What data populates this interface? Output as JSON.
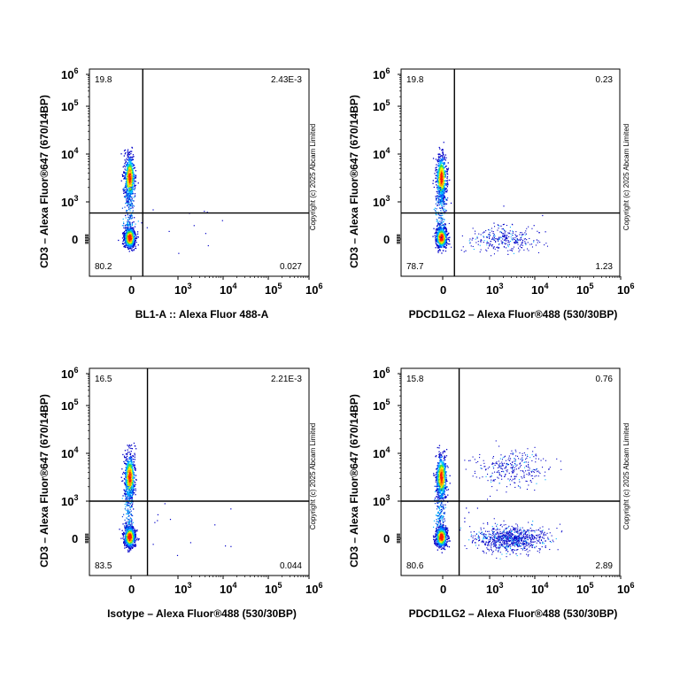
{
  "copyright": "Copyright (c) 2025 Abcam Limited",
  "chart_data": [
    {
      "type": "scatter",
      "subtype": "flow-cytometry-density-dot-plot",
      "xlabel": "BL1-A :: Alexa Fluor    488-A",
      "ylabel": "CD3 – Alexa Fluor®647 (670/14BP)",
      "x_ticks": [
        "0",
        "10^3",
        "10^4",
        "10^5",
        "10^6"
      ],
      "y_ticks": [
        "0",
        "10^3",
        "10^4",
        "10^5",
        "10^6"
      ],
      "x_scale": "biexponential",
      "y_scale": "biexponential",
      "quadrant_gate": {
        "x": 250,
        "y": 700
      },
      "quadrants": {
        "top_left": "19.8",
        "top_right": "2.43E-3",
        "bottom_left": "80.2",
        "bottom_right": "0.027"
      },
      "populations": [
        {
          "name": "CD3+ negative-x",
          "x_center": 0,
          "y_center": 4000,
          "density": "high"
        },
        {
          "name": "CD3- negative-x",
          "x_center": 0,
          "y_center": 0,
          "density": "very high"
        }
      ],
      "density_colors": [
        "#0000cc",
        "#00b4ff",
        "#00e060",
        "#ffff00",
        "#ff8000",
        "#ff0000"
      ]
    },
    {
      "type": "scatter",
      "subtype": "flow-cytometry-density-dot-plot",
      "xlabel": "PDCD1LG2 – Alexa Fluor®488 (530/30BP)",
      "ylabel": "CD3 – Alexa Fluor®647 (670/14BP)",
      "x_ticks": [
        "0",
        "10^3",
        "10^4",
        "10^5",
        "10^6"
      ],
      "y_ticks": [
        "0",
        "10^3",
        "10^4",
        "10^5",
        "10^6"
      ],
      "x_scale": "biexponential",
      "y_scale": "biexponential",
      "quadrant_gate": {
        "x": 250,
        "y": 700
      },
      "quadrants": {
        "top_left": "19.8",
        "top_right": "0.23",
        "bottom_left": "78.7",
        "bottom_right": "1.23"
      },
      "populations": [
        {
          "name": "CD3+ negative-x",
          "x_center": 0,
          "y_center": 4000,
          "density": "high"
        },
        {
          "name": "CD3- negative-x",
          "x_center": 0,
          "y_center": 0,
          "density": "very high"
        },
        {
          "name": "PDCD1LG2+ CD3-",
          "x_center": 2000,
          "y_center": 0,
          "density": "low"
        }
      ],
      "density_colors": [
        "#0000cc",
        "#00b4ff",
        "#00e060",
        "#ffff00",
        "#ff8000",
        "#ff0000"
      ]
    },
    {
      "type": "scatter",
      "subtype": "flow-cytometry-density-dot-plot",
      "xlabel": "Isotype – Alexa Fluor®488 (530/30BP)",
      "ylabel": "CD3 – Alexa Fluor®647 (670/14BP)",
      "x_ticks": [
        "0",
        "10^3",
        "10^4",
        "10^5",
        "10^6"
      ],
      "y_ticks": [
        "0",
        "10^3",
        "10^4",
        "10^5",
        "10^6"
      ],
      "x_scale": "biexponential",
      "y_scale": "biexponential",
      "quadrant_gate": {
        "x": 350,
        "y": 1000
      },
      "quadrants": {
        "top_left": "16.5",
        "top_right": "2.21E-3",
        "bottom_left": "83.5",
        "bottom_right": "0.044"
      },
      "populations": [
        {
          "name": "CD3+ negative-x",
          "x_center": 0,
          "y_center": 4000,
          "density": "high"
        },
        {
          "name": "CD3- negative-x",
          "x_center": 0,
          "y_center": 0,
          "density": "very high"
        }
      ],
      "density_colors": [
        "#0000cc",
        "#00b4ff",
        "#00e060",
        "#ffff00",
        "#ff8000",
        "#ff0000"
      ]
    },
    {
      "type": "scatter",
      "subtype": "flow-cytometry-density-dot-plot",
      "xlabel": "PDCD1LG2 – Alexa Fluor®488 (530/30BP)",
      "ylabel": "CD3 – Alexa Fluor®647 (670/14BP)",
      "x_ticks": [
        "0",
        "10^3",
        "10^4",
        "10^5",
        "10^6"
      ],
      "y_ticks": [
        "0",
        "10^3",
        "10^4",
        "10^5",
        "10^6"
      ],
      "x_scale": "biexponential",
      "y_scale": "biexponential",
      "quadrant_gate": {
        "x": 350,
        "y": 1000
      },
      "quadrants": {
        "top_left": "15.8",
        "top_right": "0.76",
        "bottom_left": "80.6",
        "bottom_right": "2.89"
      },
      "populations": [
        {
          "name": "CD3+ negative-x",
          "x_center": 0,
          "y_center": 4000,
          "density": "high"
        },
        {
          "name": "CD3- negative-x",
          "x_center": 0,
          "y_center": 0,
          "density": "very high"
        },
        {
          "name": "PDCD1LG2+ CD3+",
          "x_center": 3000,
          "y_center": 5000,
          "density": "low"
        },
        {
          "name": "PDCD1LG2+ CD3-",
          "x_center": 3000,
          "y_center": 0,
          "density": "medium"
        }
      ],
      "density_colors": [
        "#0000cc",
        "#00b4ff",
        "#00e060",
        "#ffff00",
        "#ff8000",
        "#ff0000"
      ]
    }
  ]
}
